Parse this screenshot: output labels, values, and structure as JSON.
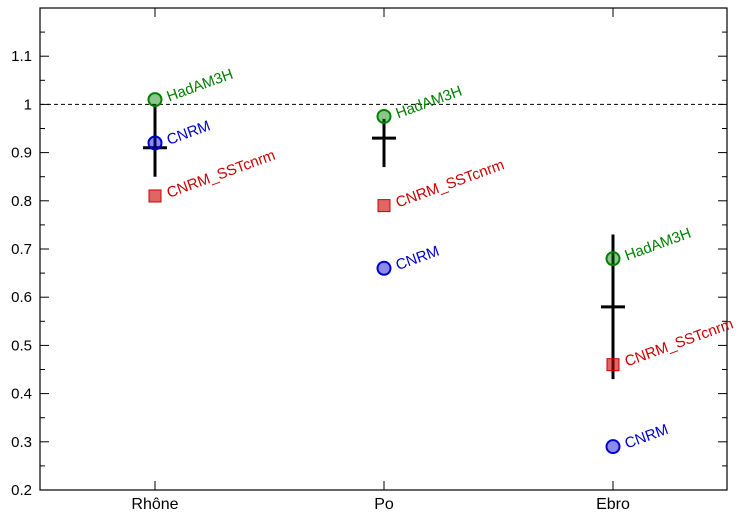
{
  "chart_data": {
    "type": "scatter",
    "title": "",
    "xlabel": "",
    "ylabel": "",
    "categories": [
      "Rhône",
      "Po",
      "Ebro"
    ],
    "ylim": [
      0.2,
      1.2
    ],
    "yticks": [
      "0.2",
      "0.3",
      "0.4",
      "0.5",
      "0.6",
      "0.7",
      "0.8",
      "0.9",
      "1",
      "1.1"
    ],
    "reference_line": 1.0,
    "grid": false,
    "series": [
      {
        "name": "HadAM3H",
        "color": "#008000",
        "marker": "circle",
        "values": [
          1.01,
          0.975,
          0.68
        ]
      },
      {
        "name": "CNRM",
        "color": "#0000cc",
        "marker": "circle",
        "values": [
          0.92,
          0.66,
          0.29
        ]
      },
      {
        "name": "CNRM_SSTcnrm",
        "color": "#cc0000",
        "marker": "square",
        "values": [
          0.81,
          0.79,
          0.46
        ]
      }
    ],
    "ensemble": [
      {
        "category": "Rhône",
        "mean": 0.91,
        "low": 0.85,
        "high": 1.0
      },
      {
        "category": "Po",
        "mean": 0.93,
        "low": 0.87,
        "high": 0.97
      },
      {
        "category": "Ebro",
        "mean": 0.58,
        "low": 0.43,
        "high": 0.73
      }
    ]
  }
}
